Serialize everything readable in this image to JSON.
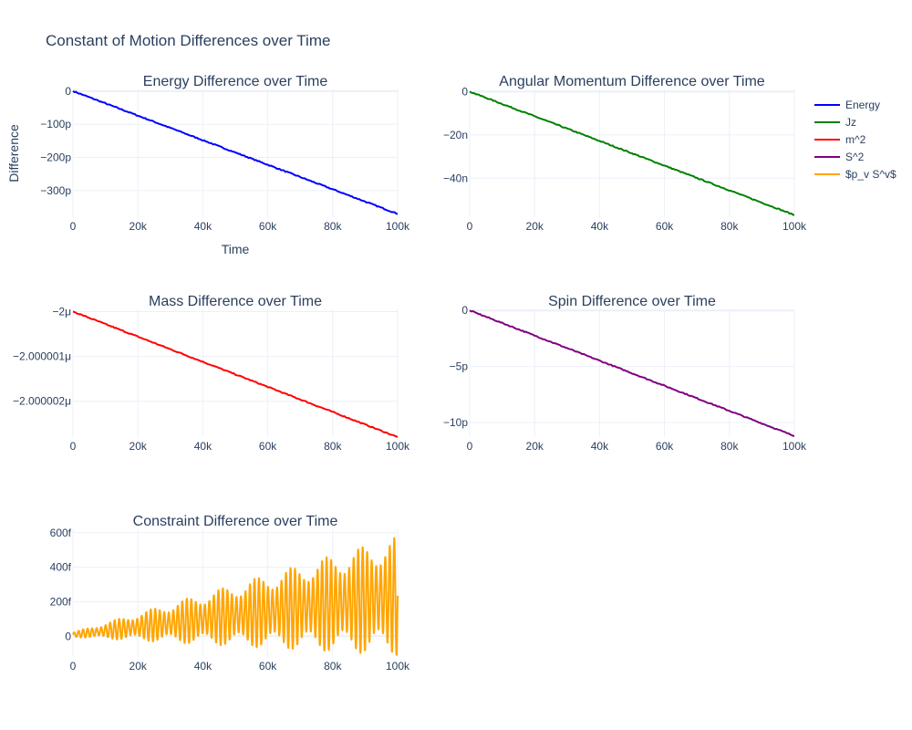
{
  "title": "Constant of Motion Differences over Time",
  "legend": [
    {
      "name": "Energy",
      "color": "#0000ff"
    },
    {
      "name": "Jz",
      "color": "#008000"
    },
    {
      "name": "m^2",
      "color": "#ff0000"
    },
    {
      "name": "S^2",
      "color": "#800080"
    },
    {
      "name": "$p_v S^v$",
      "color": "#ffa500"
    }
  ],
  "chart_data": [
    {
      "type": "line",
      "title": "Energy Difference over Time",
      "xlabel": "Time",
      "ylabel": "Difference",
      "series_name": "Energy",
      "color": "#0000ff",
      "xlim": [
        0,
        100000
      ],
      "ylim": [
        -3.8e-10,
        5e-12
      ],
      "xticks": [
        {
          "v": 0,
          "label": "0"
        },
        {
          "v": 20000,
          "label": "20k"
        },
        {
          "v": 40000,
          "label": "40k"
        },
        {
          "v": 60000,
          "label": "60k"
        },
        {
          "v": 80000,
          "label": "80k"
        },
        {
          "v": 100000,
          "label": "100k"
        }
      ],
      "yticks": [
        {
          "v": 0,
          "label": "0"
        },
        {
          "v": -1e-10,
          "label": "−100p"
        },
        {
          "v": -2e-10,
          "label": "−200p"
        },
        {
          "v": -3e-10,
          "label": "−300p"
        }
      ],
      "trend": {
        "x": [
          0,
          100000
        ],
        "y": [
          0,
          -3.7e-10
        ]
      }
    },
    {
      "type": "line",
      "title": "Angular Momentum Difference over Time",
      "xlabel": "",
      "ylabel": "",
      "series_name": "Jz",
      "color": "#008000",
      "xlim": [
        0,
        100000
      ],
      "ylim": [
        -5.8e-08,
        1e-09
      ],
      "xticks": [
        {
          "v": 0,
          "label": "0"
        },
        {
          "v": 20000,
          "label": "20k"
        },
        {
          "v": 40000,
          "label": "40k"
        },
        {
          "v": 60000,
          "label": "60k"
        },
        {
          "v": 80000,
          "label": "80k"
        },
        {
          "v": 100000,
          "label": "100k"
        }
      ],
      "yticks": [
        {
          "v": 0,
          "label": "0"
        },
        {
          "v": -2e-08,
          "label": "−20n"
        },
        {
          "v": -4e-08,
          "label": "−40n"
        }
      ],
      "trend": {
        "x": [
          0,
          100000
        ],
        "y": [
          0,
          -5.7e-08
        ]
      }
    },
    {
      "type": "line",
      "title": "Mass Difference over Time",
      "xlabel": "",
      "ylabel": "",
      "series_name": "m^2",
      "color": "#ff0000",
      "xlim": [
        0,
        100000
      ],
      "ylim": [
        -2.0000028e-06,
        -1.99999995e-06
      ],
      "xticks": [
        {
          "v": 0,
          "label": "0"
        },
        {
          "v": 20000,
          "label": "20k"
        },
        {
          "v": 40000,
          "label": "40k"
        },
        {
          "v": 60000,
          "label": "60k"
        },
        {
          "v": 80000,
          "label": "80k"
        },
        {
          "v": 100000,
          "label": "100k"
        }
      ],
      "yticks": [
        {
          "v": -2e-06,
          "label": "−2μ"
        },
        {
          "v": -2.000001e-06,
          "label": "−2.000001μ"
        },
        {
          "v": -2.000002e-06,
          "label": "−2.000002μ"
        }
      ],
      "trend": {
        "x": [
          0,
          100000
        ],
        "y": [
          -2e-06,
          -2.0000028e-06
        ]
      }
    },
    {
      "type": "line",
      "title": "Spin Difference over Time",
      "xlabel": "",
      "ylabel": "",
      "series_name": "S^2",
      "color": "#800080",
      "xlim": [
        0,
        100000
      ],
      "ylim": [
        -1.13e-11,
        1e-13
      ],
      "xticks": [
        {
          "v": 0,
          "label": "0"
        },
        {
          "v": 20000,
          "label": "20k"
        },
        {
          "v": 40000,
          "label": "40k"
        },
        {
          "v": 60000,
          "label": "60k"
        },
        {
          "v": 80000,
          "label": "80k"
        },
        {
          "v": 100000,
          "label": "100k"
        }
      ],
      "yticks": [
        {
          "v": 0,
          "label": "0"
        },
        {
          "v": -5e-12,
          "label": "−5p"
        },
        {
          "v": -1e-11,
          "label": "−10p"
        }
      ],
      "trend": {
        "x": [
          0,
          100000
        ],
        "y": [
          0,
          -1.12e-11
        ]
      }
    },
    {
      "type": "line",
      "title": "Constraint Difference over Time",
      "xlabel": "",
      "ylabel": "",
      "series_name": "$p_v S^v$",
      "color": "#ffa500",
      "xlim": [
        0,
        100000
      ],
      "ylim": [
        -1.2e-13,
        6.2e-13
      ],
      "xticks": [
        {
          "v": 0,
          "label": "0"
        },
        {
          "v": 20000,
          "label": "20k"
        },
        {
          "v": 40000,
          "label": "40k"
        },
        {
          "v": 60000,
          "label": "60k"
        },
        {
          "v": 80000,
          "label": "80k"
        },
        {
          "v": 100000,
          "label": "100k"
        }
      ],
      "yticks": [
        {
          "v": 0,
          "label": "0"
        },
        {
          "v": 2e-13,
          "label": "200f"
        },
        {
          "v": 4e-13,
          "label": "400f"
        },
        {
          "v": 6e-13,
          "label": "600f"
        }
      ],
      "oscillation": {
        "cycles": 72,
        "max_high": 5.8e-13,
        "max_low": -1.1e-13
      }
    }
  ]
}
